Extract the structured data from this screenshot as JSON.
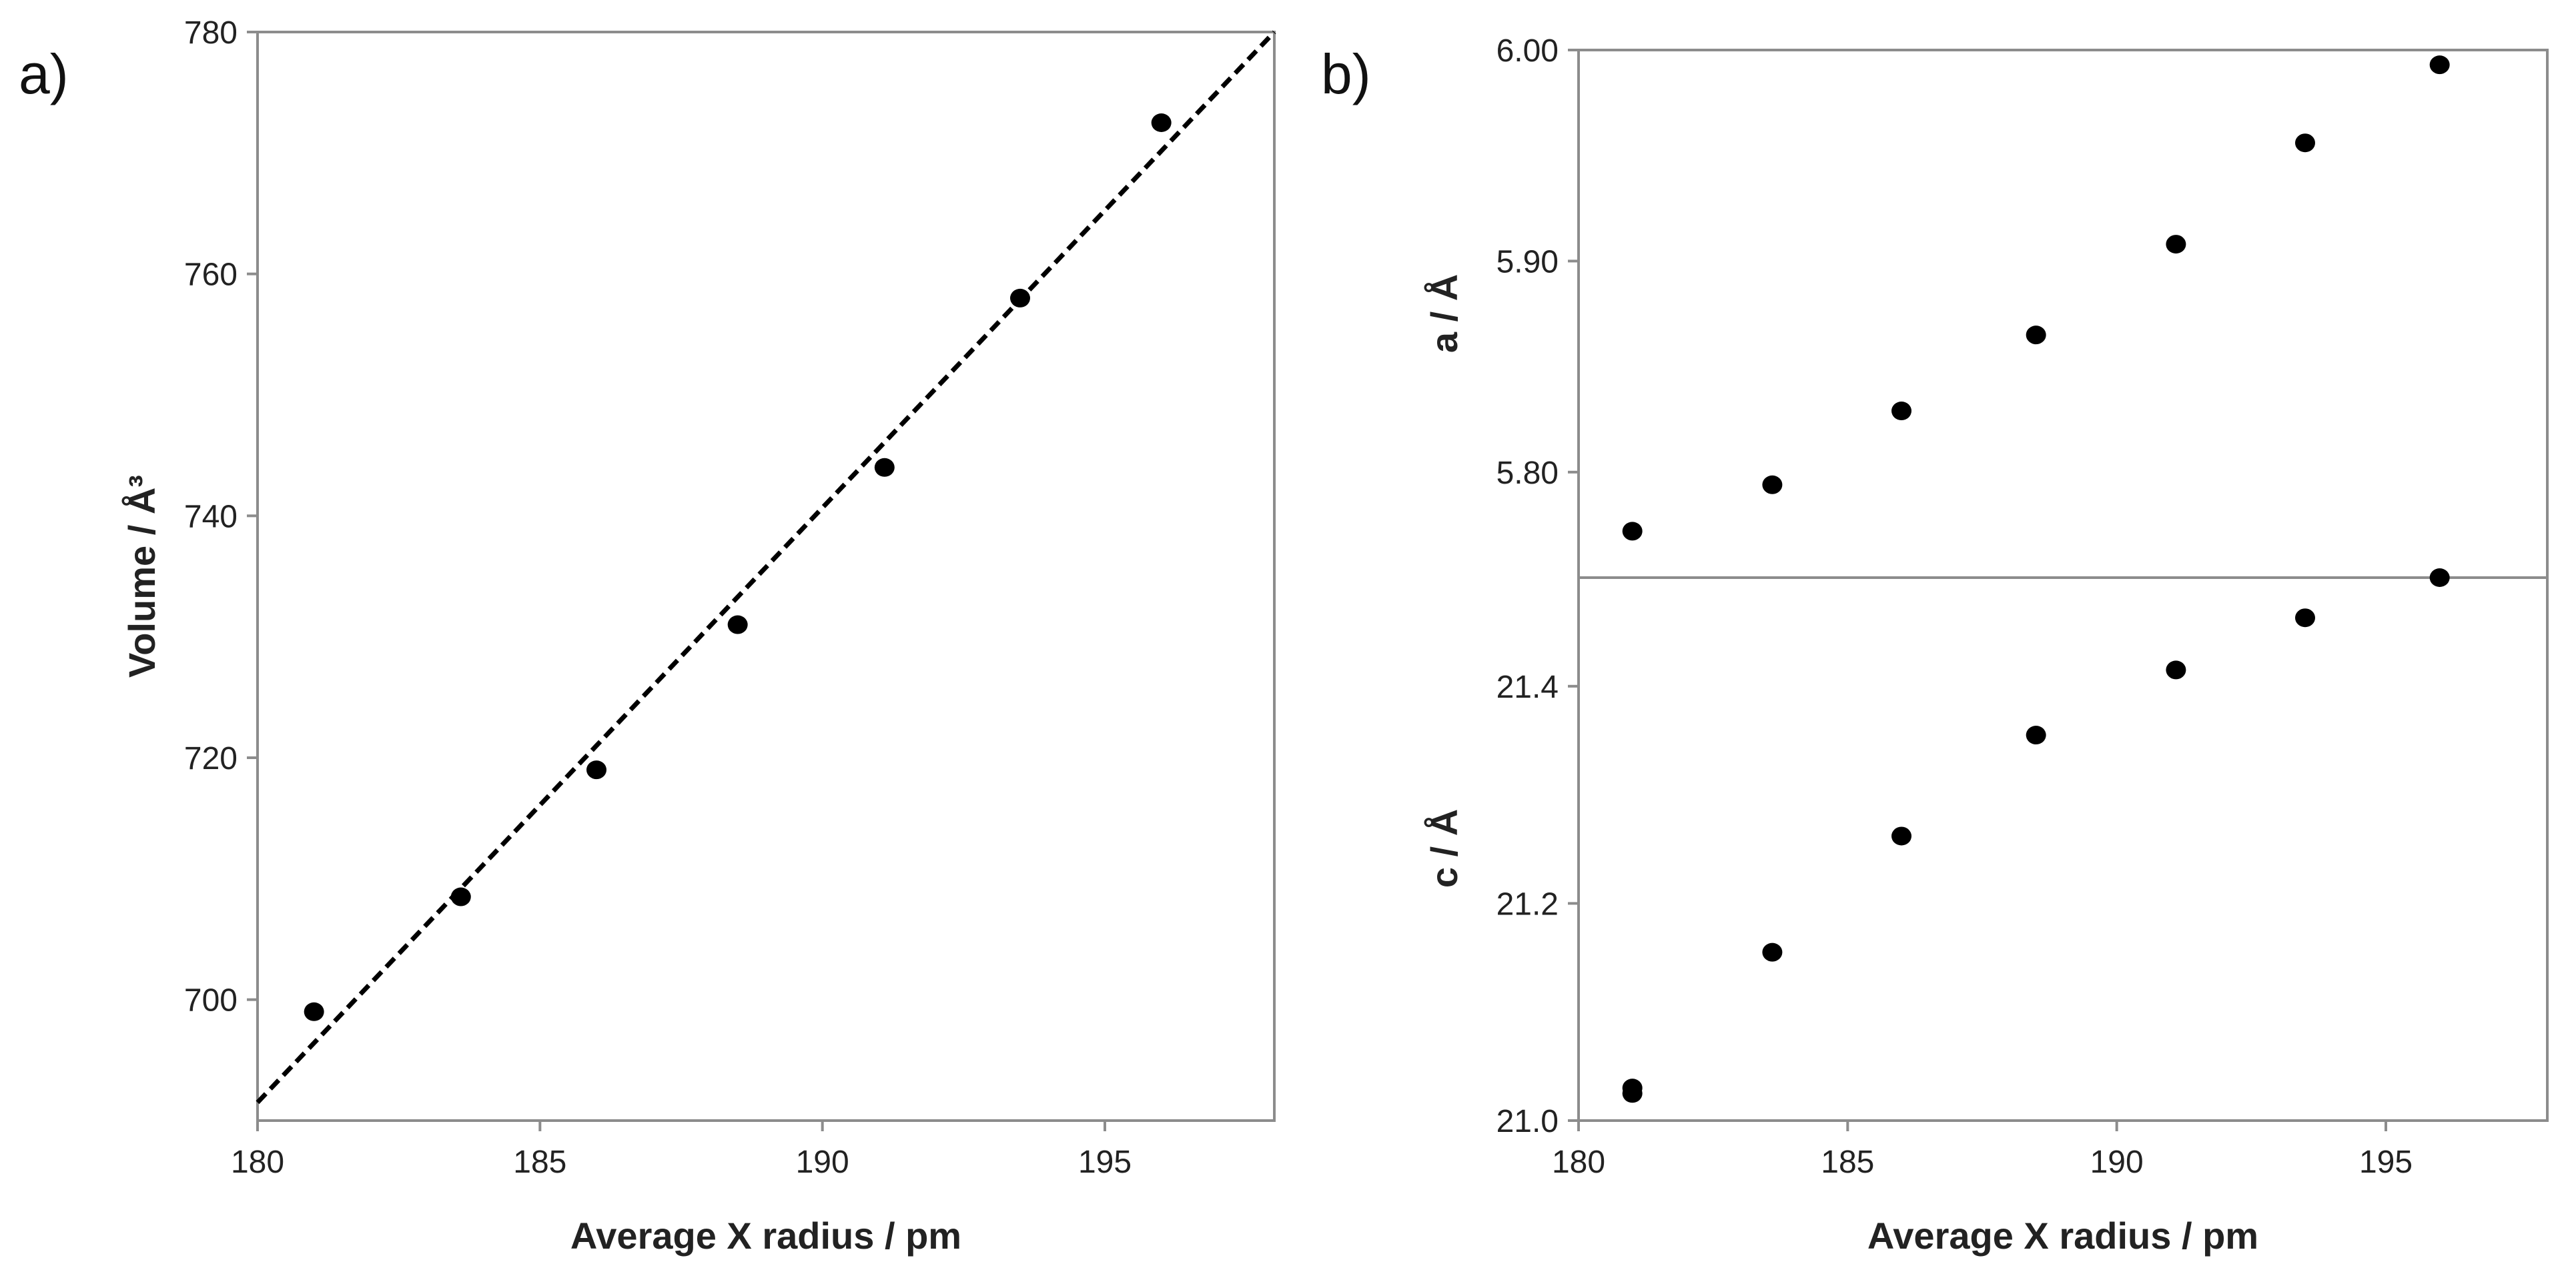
{
  "chart_data": [
    {
      "type": "scatter",
      "panel_label": "a)",
      "xlabel": "Average X radius / pm",
      "ylabel": "Volume / Å³",
      "xlim": [
        180,
        198
      ],
      "ylim": [
        690,
        780
      ],
      "x_ticks": [
        180,
        185,
        190,
        195
      ],
      "x_tick_labels": [
        "180",
        "185",
        "190",
        "195"
      ],
      "y_ticks": [
        700,
        720,
        740,
        760,
        780
      ],
      "y_tick_labels": [
        "700",
        "720",
        "740",
        "760",
        "780"
      ],
      "series": [
        {
          "name": "Volume",
          "x": [
            181.0,
            183.6,
            186.0,
            188.5,
            191.1,
            193.5,
            196.0
          ],
          "y": [
            699,
            708.5,
            719,
            731,
            744,
            758,
            772.5
          ]
        }
      ],
      "fit_line": {
        "style": "dashed",
        "x": [
          180,
          198
        ],
        "y": [
          691.5,
          780
        ]
      }
    },
    {
      "type": "scatter",
      "panel_label": "b)",
      "xlabel": "Average X radius / pm",
      "ylabel": "a / Å",
      "xlim": [
        180,
        198
      ],
      "ylim": [
        5.75,
        6.0
      ],
      "y_ticks": [
        5.8,
        5.9,
        6.0
      ],
      "y_tick_labels": [
        "5.80",
        "5.90",
        "6.00"
      ],
      "series": [
        {
          "name": "a",
          "x": [
            181.0,
            183.6,
            186.0,
            188.5,
            191.1,
            193.5,
            196.0
          ],
          "y": [
            5.772,
            5.794,
            5.829,
            5.865,
            5.908,
            5.956,
            5.993
          ]
        }
      ]
    },
    {
      "type": "scatter",
      "panel_label": "",
      "xlabel": "Average X radius / pm",
      "ylabel": "c / Å",
      "xlim": [
        180,
        198
      ],
      "ylim": [
        21.0,
        21.5
      ],
      "x_ticks": [
        180,
        185,
        190,
        195
      ],
      "x_tick_labels": [
        "180",
        "185",
        "190",
        "195"
      ],
      "y_ticks": [
        21.0,
        21.2,
        21.4
      ],
      "y_tick_labels": [
        "21.0",
        "21.2",
        "21.4"
      ],
      "series": [
        {
          "name": "c",
          "x": [
            181.0,
            181.0,
            183.6,
            186.0,
            188.5,
            191.1,
            193.5,
            196.0
          ],
          "y": [
            21.025,
            21.03,
            21.155,
            21.262,
            21.355,
            21.415,
            21.463,
            21.5
          ]
        }
      ]
    }
  ]
}
